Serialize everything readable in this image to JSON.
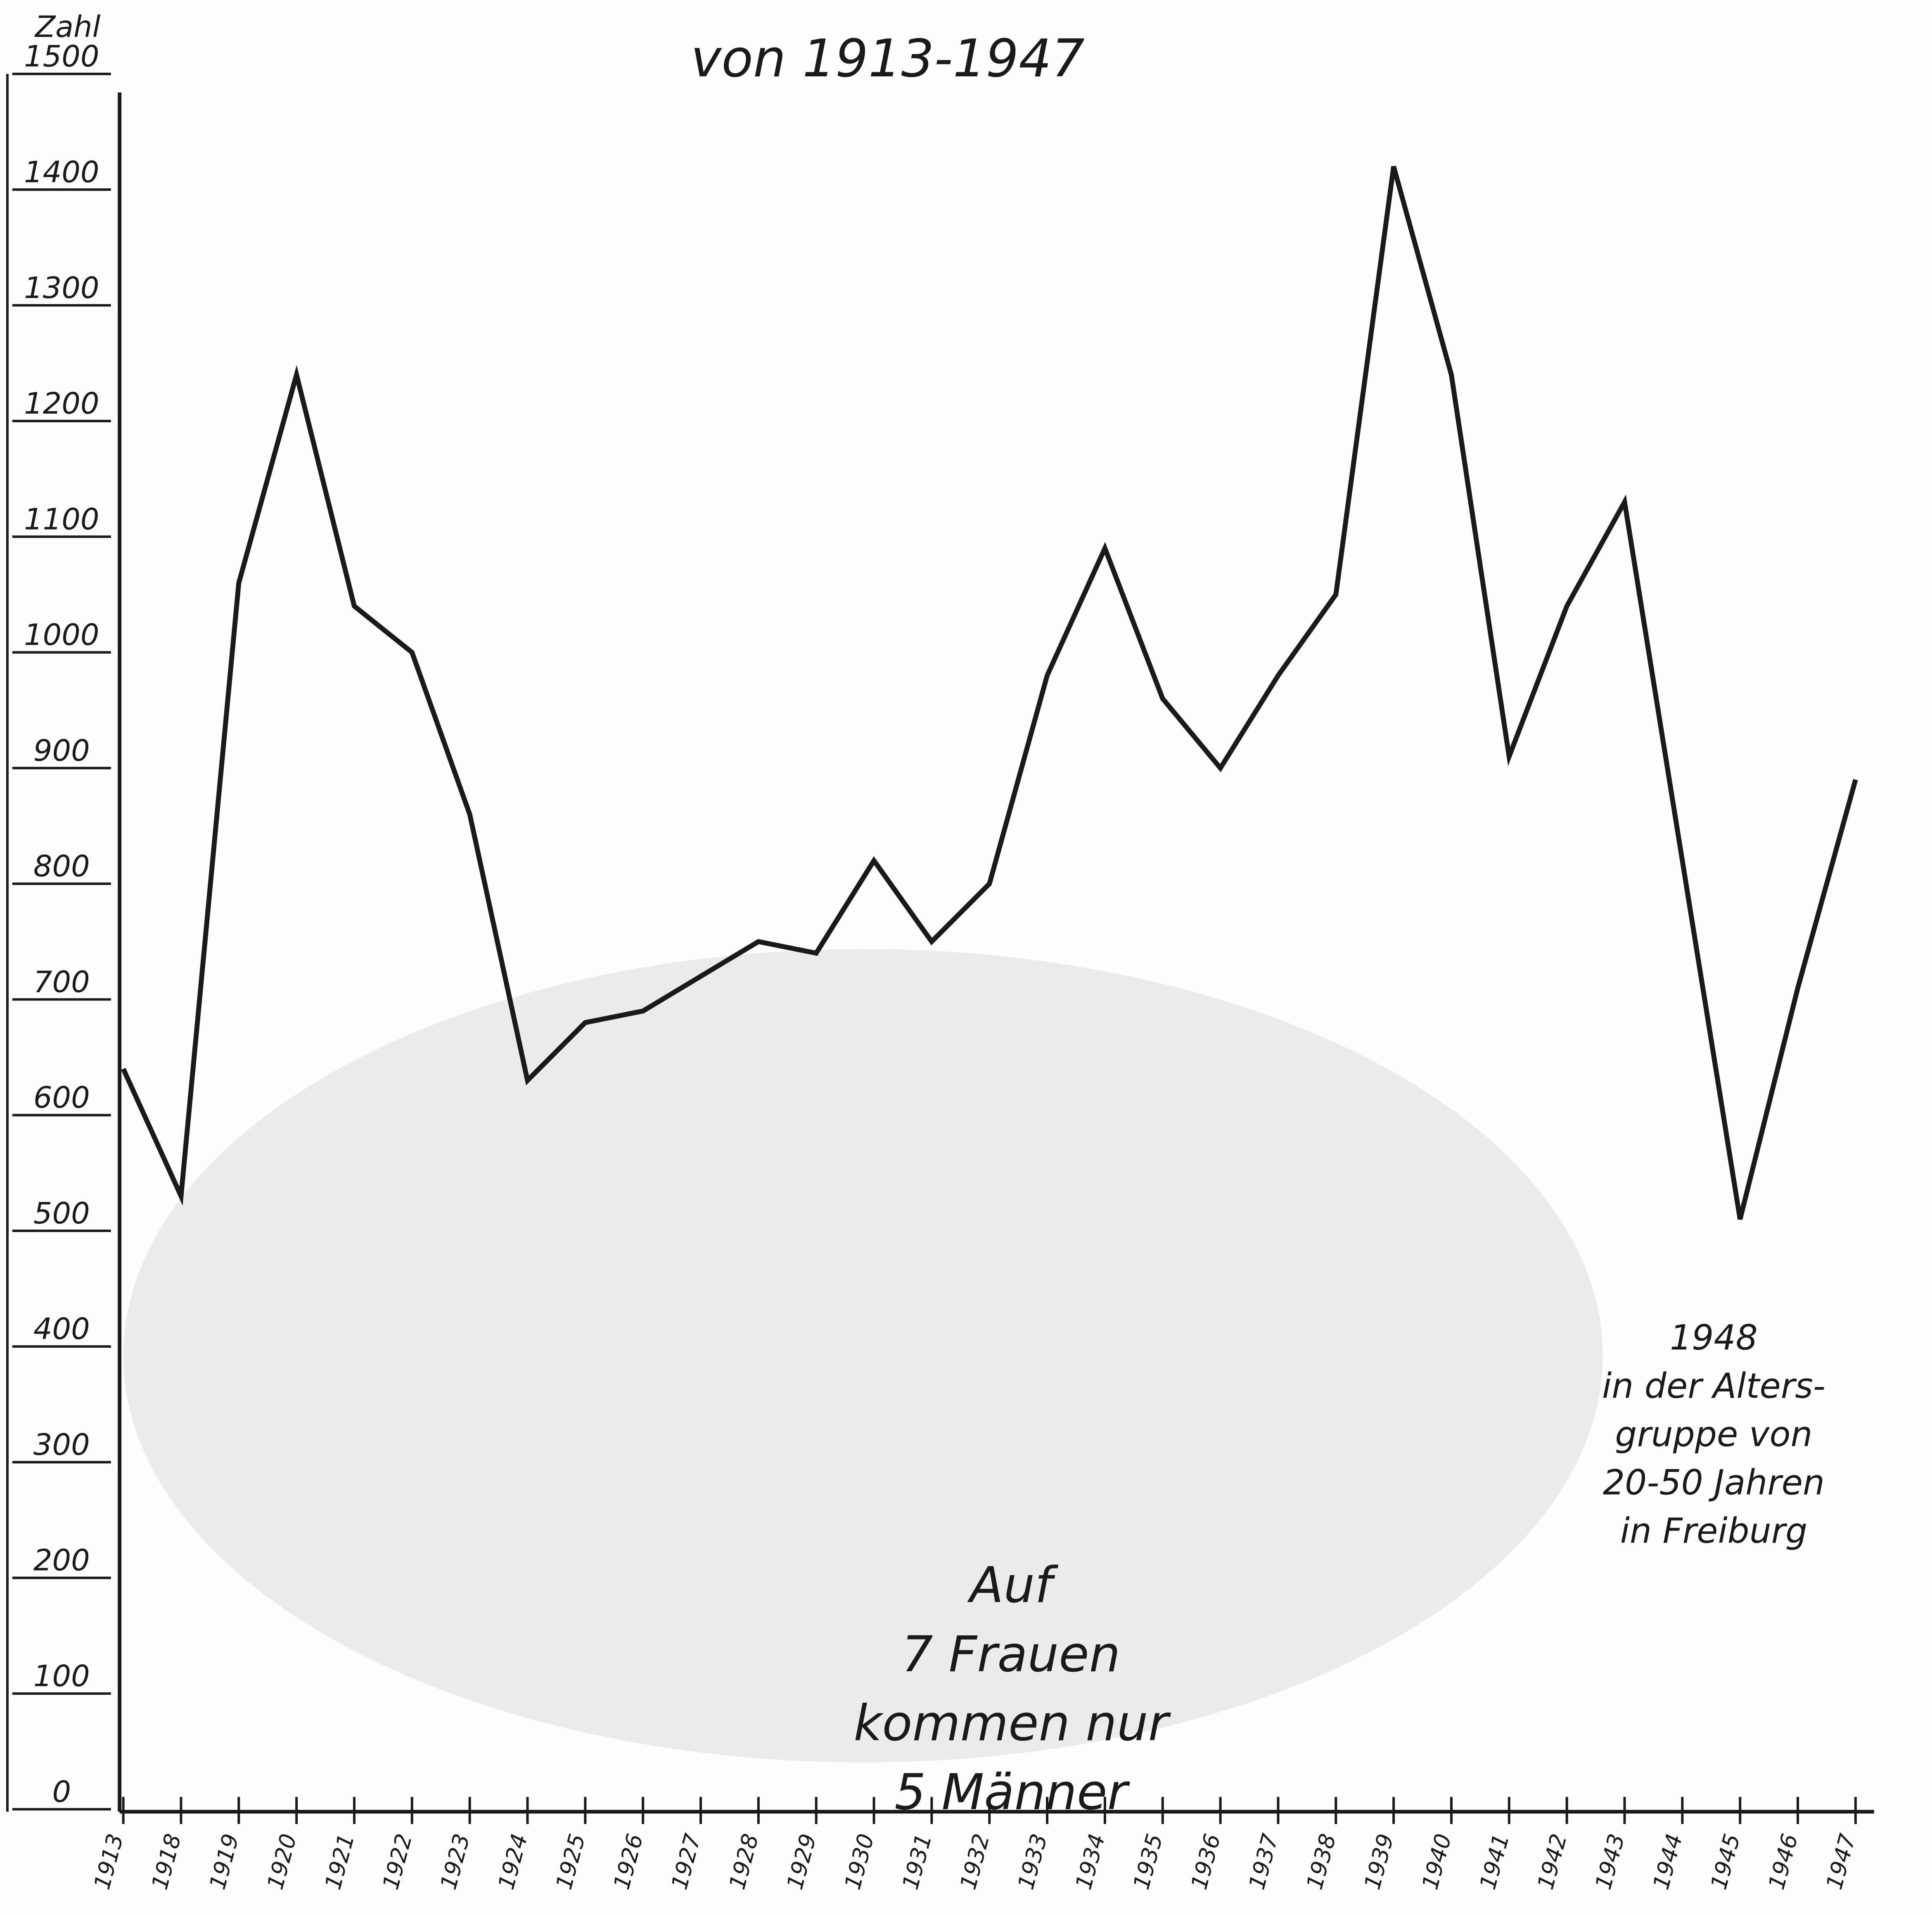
{
  "chart_data": {
    "type": "line",
    "title": "von 1913-1947",
    "y_label": "Zahl",
    "categories": [
      "1913",
      "1918",
      "1919",
      "1920",
      "1921",
      "1922",
      "1923",
      "1924",
      "1925",
      "1926",
      "1927",
      "1928",
      "1929",
      "1930",
      "1931",
      "1932",
      "1933",
      "1934",
      "1935",
      "1936",
      "1937",
      "1938",
      "1939",
      "1940",
      "1941",
      "1942",
      "1943",
      "1944",
      "1945",
      "1946",
      "1947"
    ],
    "series": [
      {
        "name": "Zahl",
        "color": "#1a1a1a",
        "values": [
          640,
          530,
          1060,
          1240,
          1040,
          1000,
          860,
          630,
          680,
          690,
          720,
          750,
          740,
          820,
          750,
          800,
          980,
          1090,
          960,
          900,
          980,
          1050,
          1420,
          1240,
          910,
          1040,
          1130,
          820,
          510,
          710,
          890
        ]
      }
    ],
    "ylim": [
      0,
      1500
    ],
    "yticks": [
      0,
      100,
      200,
      300,
      400,
      500,
      600,
      700,
      800,
      900,
      1000,
      1100,
      1200,
      1300,
      1400,
      1500
    ],
    "annotations": [
      {
        "lines": [
          "1948",
          "in der Alters-",
          "gruppe von",
          "20-50 Jahren",
          "in Freiburg"
        ]
      },
      {
        "lines": [
          "Auf",
          "7 Frauen",
          "kommen nur",
          "5 Männer"
        ]
      }
    ]
  }
}
